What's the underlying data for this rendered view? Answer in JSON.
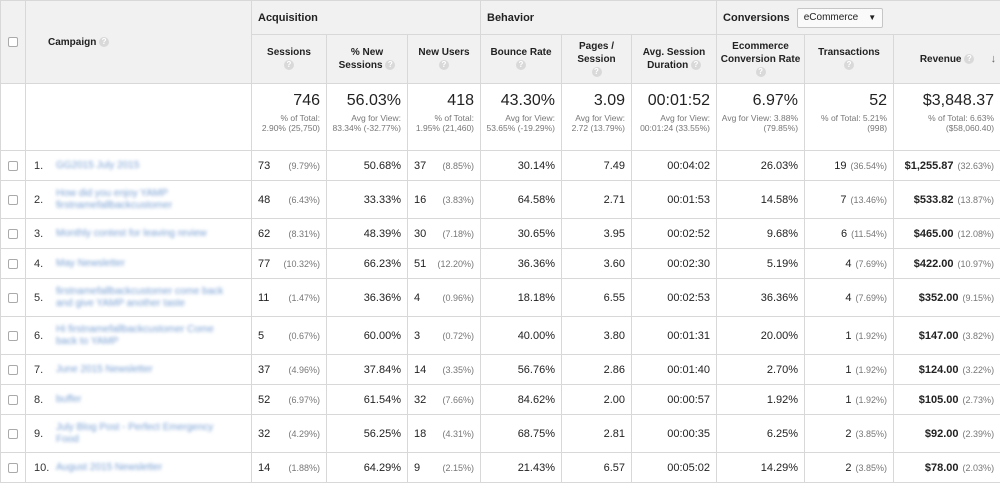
{
  "groups": {
    "campaign": "Campaign",
    "acquisition": "Acquisition",
    "behavior": "Behavior",
    "conversions": "Conversions",
    "conversions_select": "eCommerce"
  },
  "columns": {
    "sessions": "Sessions",
    "new_sessions": "% New Sessions",
    "new_users": "New Users",
    "bounce_rate": "Bounce Rate",
    "pages_session": "Pages / Session",
    "avg_duration": "Avg. Session Duration",
    "conv_rate": "Ecommerce Conversion Rate",
    "transactions": "Transactions",
    "revenue": "Revenue"
  },
  "totals": {
    "sessions": {
      "value": "746",
      "sub": "% of Total: 2.90% (25,750)"
    },
    "new_sessions": {
      "value": "56.03%",
      "sub": "Avg for View: 83.34% (-32.77%)"
    },
    "new_users": {
      "value": "418",
      "sub": "% of Total: 1.95% (21,460)"
    },
    "bounce_rate": {
      "value": "43.30%",
      "sub": "Avg for View: 53.65% (-19.29%)"
    },
    "pages_session": {
      "value": "3.09",
      "sub": "Avg for View: 2.72 (13.79%)"
    },
    "avg_duration": {
      "value": "00:01:52",
      "sub": "Avg for View: 00:01:24 (33.55%)"
    },
    "conv_rate": {
      "value": "6.97%",
      "sub": "Avg for View: 3.88% (79.85%)"
    },
    "transactions": {
      "value": "52",
      "sub": "% of Total: 5.21% (998)"
    },
    "revenue": {
      "value": "$3,848.37",
      "sub": "% of Total: 6.63% ($58,060.40)"
    }
  },
  "rows": [
    {
      "idx": "1.",
      "campaign": "GG2015 July 2015",
      "sessions": "73",
      "sessions_pct": "(9.79%)",
      "new_sessions": "50.68%",
      "new_users": "37",
      "new_users_pct": "(8.85%)",
      "bounce_rate": "30.14%",
      "pages": "7.49",
      "duration": "00:04:02",
      "conv_rate": "26.03%",
      "transactions": "19",
      "transactions_pct": "(36.54%)",
      "revenue": "$1,255.87",
      "revenue_pct": "(32.63%)"
    },
    {
      "idx": "2.",
      "campaign": "How did you enjoy YAMP firstnamefallbackcustomer",
      "sessions": "48",
      "sessions_pct": "(6.43%)",
      "new_sessions": "33.33%",
      "new_users": "16",
      "new_users_pct": "(3.83%)",
      "bounce_rate": "64.58%",
      "pages": "2.71",
      "duration": "00:01:53",
      "conv_rate": "14.58%",
      "transactions": "7",
      "transactions_pct": "(13.46%)",
      "revenue": "$533.82",
      "revenue_pct": "(13.87%)"
    },
    {
      "idx": "3.",
      "campaign": "Monthly contest for leaving review",
      "sessions": "62",
      "sessions_pct": "(8.31%)",
      "new_sessions": "48.39%",
      "new_users": "30",
      "new_users_pct": "(7.18%)",
      "bounce_rate": "30.65%",
      "pages": "3.95",
      "duration": "00:02:52",
      "conv_rate": "9.68%",
      "transactions": "6",
      "transactions_pct": "(11.54%)",
      "revenue": "$465.00",
      "revenue_pct": "(12.08%)"
    },
    {
      "idx": "4.",
      "campaign": "May Newsletter",
      "sessions": "77",
      "sessions_pct": "(10.32%)",
      "new_sessions": "66.23%",
      "new_users": "51",
      "new_users_pct": "(12.20%)",
      "bounce_rate": "36.36%",
      "pages": "3.60",
      "duration": "00:02:30",
      "conv_rate": "5.19%",
      "transactions": "4",
      "transactions_pct": "(7.69%)",
      "revenue": "$422.00",
      "revenue_pct": "(10.97%)"
    },
    {
      "idx": "5.",
      "campaign": "firstnamefallbackcustomer come back and give YAMP another taste",
      "sessions": "11",
      "sessions_pct": "(1.47%)",
      "new_sessions": "36.36%",
      "new_users": "4",
      "new_users_pct": "(0.96%)",
      "bounce_rate": "18.18%",
      "pages": "6.55",
      "duration": "00:02:53",
      "conv_rate": "36.36%",
      "transactions": "4",
      "transactions_pct": "(7.69%)",
      "revenue": "$352.00",
      "revenue_pct": "(9.15%)"
    },
    {
      "idx": "6.",
      "campaign": "Hi firstnamefallbackcustomer Come back to YAMP",
      "sessions": "5",
      "sessions_pct": "(0.67%)",
      "new_sessions": "60.00%",
      "new_users": "3",
      "new_users_pct": "(0.72%)",
      "bounce_rate": "40.00%",
      "pages": "3.80",
      "duration": "00:01:31",
      "conv_rate": "20.00%",
      "transactions": "1",
      "transactions_pct": "(1.92%)",
      "revenue": "$147.00",
      "revenue_pct": "(3.82%)"
    },
    {
      "idx": "7.",
      "campaign": "June 2015 Newsletter",
      "sessions": "37",
      "sessions_pct": "(4.96%)",
      "new_sessions": "37.84%",
      "new_users": "14",
      "new_users_pct": "(3.35%)",
      "bounce_rate": "56.76%",
      "pages": "2.86",
      "duration": "00:01:40",
      "conv_rate": "2.70%",
      "transactions": "1",
      "transactions_pct": "(1.92%)",
      "revenue": "$124.00",
      "revenue_pct": "(3.22%)"
    },
    {
      "idx": "8.",
      "campaign": "buffer",
      "sessions": "52",
      "sessions_pct": "(6.97%)",
      "new_sessions": "61.54%",
      "new_users": "32",
      "new_users_pct": "(7.66%)",
      "bounce_rate": "84.62%",
      "pages": "2.00",
      "duration": "00:00:57",
      "conv_rate": "1.92%",
      "transactions": "1",
      "transactions_pct": "(1.92%)",
      "revenue": "$105.00",
      "revenue_pct": "(2.73%)"
    },
    {
      "idx": "9.",
      "campaign": "July Blog Post - Perfect Emergency Food",
      "sessions": "32",
      "sessions_pct": "(4.29%)",
      "new_sessions": "56.25%",
      "new_users": "18",
      "new_users_pct": "(4.31%)",
      "bounce_rate": "68.75%",
      "pages": "2.81",
      "duration": "00:00:35",
      "conv_rate": "6.25%",
      "transactions": "2",
      "transactions_pct": "(3.85%)",
      "revenue": "$92.00",
      "revenue_pct": "(2.39%)"
    },
    {
      "idx": "10.",
      "campaign": "August 2015 Newsletter",
      "sessions": "14",
      "sessions_pct": "(1.88%)",
      "new_sessions": "64.29%",
      "new_users": "9",
      "new_users_pct": "(2.15%)",
      "bounce_rate": "21.43%",
      "pages": "6.57",
      "duration": "00:05:02",
      "conv_rate": "14.29%",
      "transactions": "2",
      "transactions_pct": "(3.85%)",
      "revenue": "$78.00",
      "revenue_pct": "(2.03%)"
    }
  ]
}
